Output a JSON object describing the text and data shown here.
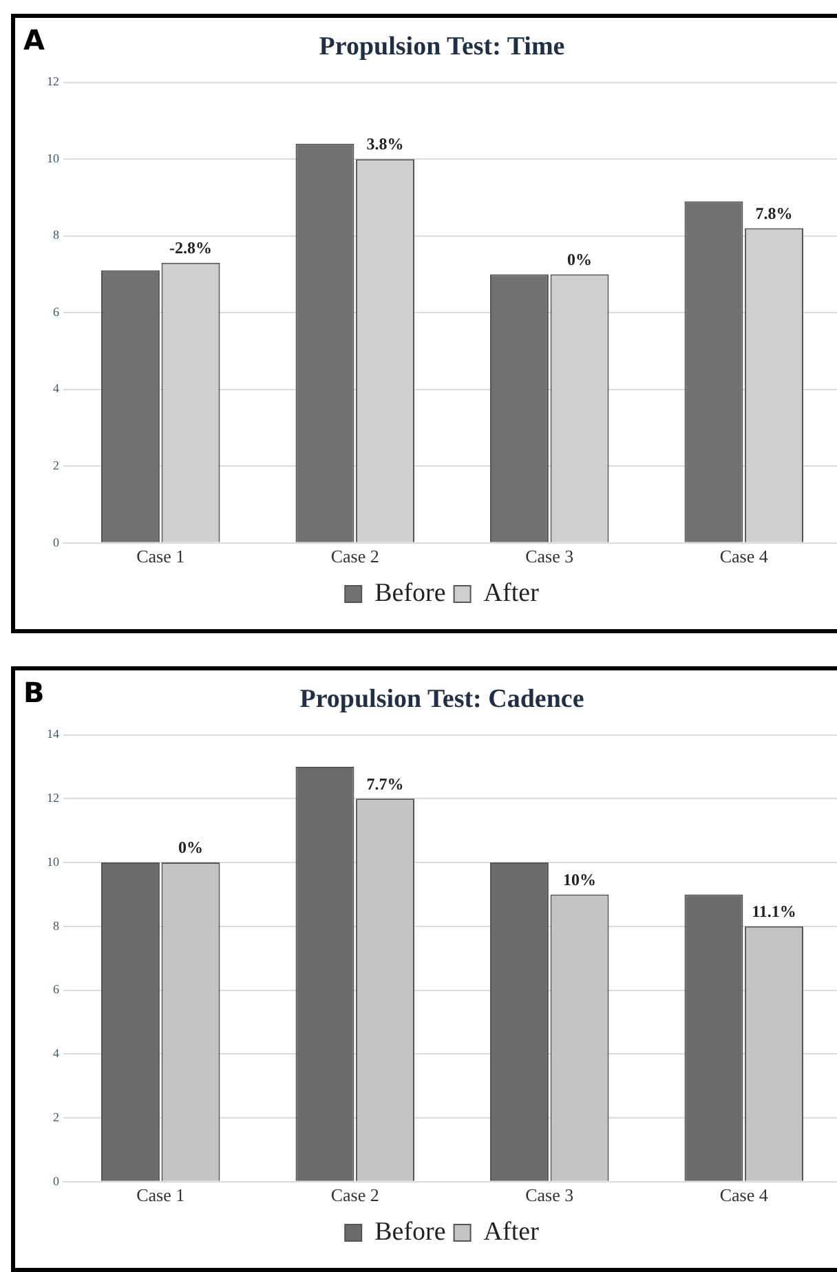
{
  "chart_data": [
    {
      "type": "bar",
      "title": "Propulsion Test: Time",
      "categories": [
        "Case 1",
        "Case 2",
        "Case 3",
        "Case 4"
      ],
      "annotations": [
        "A",
        {
          "text": "-2.8%",
          "x": "Case 1",
          "y": 7.3
        },
        {
          "text": "3.8%",
          "x": "Case 2",
          "y": 10.0
        },
        {
          "text": "0%",
          "x": "Case 3",
          "y": 7.0
        },
        {
          "text": "7.8%",
          "x": "Case 4",
          "y": 8.2
        }
      ],
      "series": [
        {
          "name": "Before",
          "color": "#717171",
          "values": [
            7.1,
            10.4,
            7.0,
            8.9
          ]
        },
        {
          "name": "After",
          "color": "#cfcfcf",
          "values": [
            7.3,
            10.0,
            7.0,
            8.2
          ]
        }
      ],
      "ylim": [
        0,
        12
      ],
      "yticks": [
        0,
        2,
        4,
        6,
        8,
        10,
        12
      ],
      "grid": "y",
      "legend": "bottom"
    },
    {
      "type": "bar",
      "title": "Propulsion Test: Cadence",
      "categories": [
        "Case 1",
        "Case 2",
        "Case 3",
        "Case 4"
      ],
      "annotations": [
        "B",
        {
          "text": "0%",
          "x": "Case 1",
          "y": 10
        },
        {
          "text": "7.7%",
          "x": "Case 2",
          "y": 12
        },
        {
          "text": "10%",
          "x": "Case 3",
          "y": 9
        },
        {
          "text": "11.1%",
          "x": "Case 4",
          "y": 8
        }
      ],
      "series": [
        {
          "name": "Before",
          "color": "#6b6b6b",
          "values": [
            10,
            13,
            10,
            9
          ]
        },
        {
          "name": "After",
          "color": "#c4c4c4",
          "values": [
            10,
            12,
            9,
            8
          ]
        }
      ],
      "ylim": [
        0,
        14
      ],
      "yticks": [
        0,
        2,
        4,
        6,
        8,
        10,
        12,
        14
      ],
      "grid": "y",
      "legend": "bottom"
    }
  ]
}
